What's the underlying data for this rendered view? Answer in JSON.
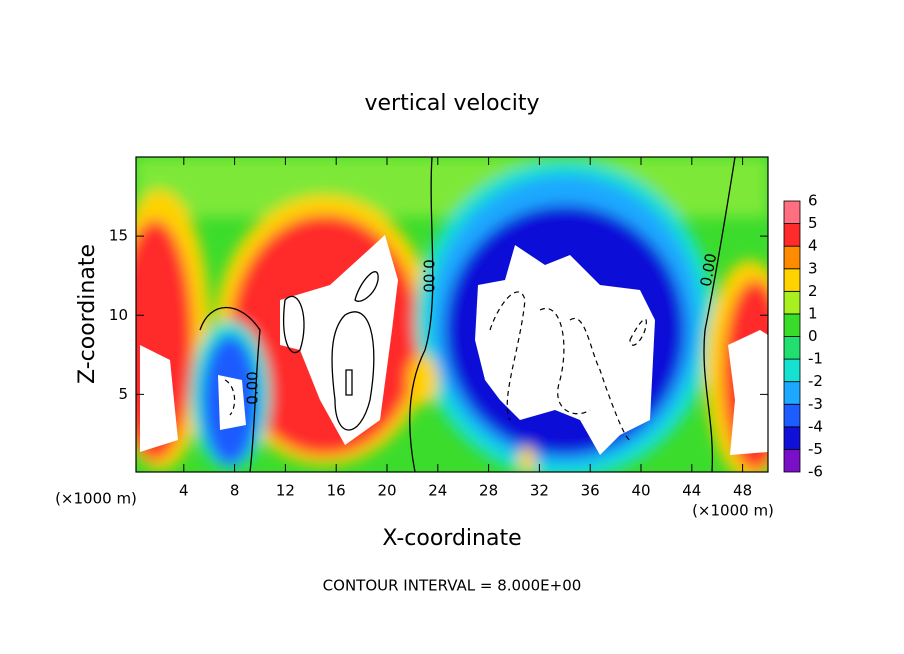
{
  "chart_data": {
    "type": "contour",
    "title": "vertical velocity",
    "x_label": "X-coordinate",
    "y_label": "Z-coordinate",
    "x_unit": "(×1000 m)",
    "footer": "CONTOUR INTERVAL = 8.000E+00",
    "contour_labels": [
      "0.00",
      "0.00",
      "0.00"
    ],
    "xlim": [
      0,
      50
    ],
    "xticks": [
      4,
      8,
      12,
      16,
      20,
      24,
      28,
      32,
      36,
      40,
      44,
      48
    ],
    "ylim": [
      0,
      20
    ],
    "yticks": [
      5,
      10,
      15
    ],
    "colorbar": {
      "ticks": [
        -6,
        -5,
        -4,
        -3,
        -2,
        -1,
        0,
        1,
        2,
        3,
        4,
        5,
        6
      ],
      "colors": [
        "#7a0fc8",
        "#1010d8",
        "#1d5cff",
        "#1fa8ff",
        "#16e0d0",
        "#22e070",
        "#3adc2a",
        "#a8f020",
        "#ffd200",
        "#ff8c00",
        "#ff2a2a",
        "#ff6f80"
      ]
    }
  }
}
